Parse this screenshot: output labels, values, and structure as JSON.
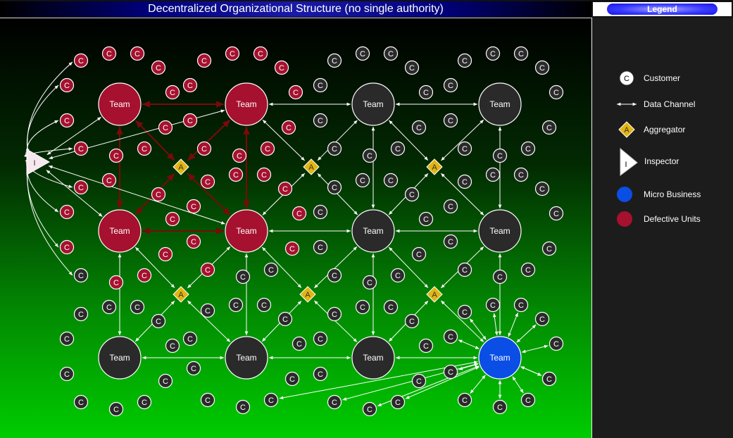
{
  "title": "Decentralized Organizational Structure (no single authority)",
  "legend": {
    "heading": "Legend",
    "items": [
      {
        "key": "customer",
        "label": "Customer",
        "glyph": "C"
      },
      {
        "key": "channel",
        "label": "Data Channel"
      },
      {
        "key": "aggregator",
        "label": "Aggregator",
        "glyph": "A"
      },
      {
        "key": "inspector",
        "label": "Inspector",
        "glyph": "I"
      },
      {
        "key": "micro",
        "label": "Micro Business"
      },
      {
        "key": "defective",
        "label": "Defective Units"
      }
    ]
  },
  "labels": {
    "team": "Team",
    "customer": "C",
    "aggregator": "A",
    "inspector": "I"
  },
  "colors": {
    "defective": "#a5112e",
    "team": "#2a2a2a",
    "micro": "#0a4ee6",
    "aggregator": "#e3b512",
    "channel_white": "#ffffff",
    "channel_defective": "#7a0a0a",
    "legend_bg": "#1c1c1c",
    "border": "#eeeeee"
  },
  "teams": [
    {
      "id": "t1",
      "status": "defective"
    },
    {
      "id": "t2",
      "status": "defective"
    },
    {
      "id": "t3",
      "status": "normal"
    },
    {
      "id": "t4",
      "status": "normal"
    },
    {
      "id": "t5",
      "status": "defective"
    },
    {
      "id": "t6",
      "status": "defective"
    },
    {
      "id": "t7",
      "status": "normal"
    },
    {
      "id": "t8",
      "status": "normal"
    },
    {
      "id": "t9",
      "status": "normal"
    },
    {
      "id": "t10",
      "status": "normal"
    },
    {
      "id": "t11",
      "status": "normal"
    },
    {
      "id": "t12",
      "status": "micro"
    }
  ],
  "aggregators": [
    "a1",
    "a2",
    "a3",
    "a4",
    "a5",
    "a6"
  ],
  "inspector": {
    "id": "i1"
  },
  "team_links": [
    [
      "t1",
      "t2",
      "defective"
    ],
    [
      "t1",
      "t5",
      "defective"
    ],
    [
      "t2",
      "t6",
      "defective"
    ],
    [
      "t5",
      "t6",
      "defective"
    ],
    [
      "t2",
      "t3",
      "normal"
    ],
    [
      "t3",
      "t4",
      "normal"
    ],
    [
      "t6",
      "t7",
      "normal"
    ],
    [
      "t7",
      "t8",
      "normal"
    ],
    [
      "t9",
      "t10",
      "normal"
    ],
    [
      "t10",
      "t11",
      "normal"
    ],
    [
      "t11",
      "t12",
      "normal"
    ],
    [
      "t3",
      "t7",
      "normal"
    ],
    [
      "t4",
      "t8",
      "normal"
    ],
    [
      "t5",
      "t9",
      "normal"
    ],
    [
      "t6",
      "t10",
      "normal"
    ],
    [
      "t7",
      "t11",
      "normal"
    ],
    [
      "t8",
      "t12",
      "normal"
    ]
  ],
  "aggregator_links": [
    [
      "a1",
      "t1",
      "defective"
    ],
    [
      "a1",
      "t2",
      "defective"
    ],
    [
      "a1",
      "t5",
      "defective"
    ],
    [
      "a1",
      "t6",
      "defective"
    ],
    [
      "a2",
      "t2",
      "normal"
    ],
    [
      "a2",
      "t3",
      "normal"
    ],
    [
      "a2",
      "t6",
      "normal"
    ],
    [
      "a2",
      "t7",
      "normal"
    ],
    [
      "a3",
      "t3",
      "normal"
    ],
    [
      "a3",
      "t4",
      "normal"
    ],
    [
      "a3",
      "t7",
      "normal"
    ],
    [
      "a3",
      "t8",
      "normal"
    ],
    [
      "a4",
      "t5",
      "normal"
    ],
    [
      "a4",
      "t6",
      "normal"
    ],
    [
      "a4",
      "t9",
      "normal"
    ],
    [
      "a4",
      "t10",
      "normal"
    ],
    [
      "a5",
      "t6",
      "normal"
    ],
    [
      "a5",
      "t7",
      "normal"
    ],
    [
      "a5",
      "t10",
      "normal"
    ],
    [
      "a5",
      "t11",
      "normal"
    ],
    [
      "a6",
      "t7",
      "normal"
    ],
    [
      "a6",
      "t8",
      "normal"
    ],
    [
      "a6",
      "t11",
      "normal"
    ],
    [
      "a6",
      "t12",
      "normal"
    ]
  ],
  "inspector_links": [
    "t1",
    "t2",
    "t5",
    "t6"
  ],
  "inspector_customer_links": 8,
  "customers": [
    {
      "s": "d"
    },
    {
      "s": "d"
    },
    {
      "s": "d"
    },
    {
      "s": "d"
    },
    {
      "s": "d"
    },
    {
      "s": "d"
    },
    {
      "s": "d"
    },
    {
      "s": "d"
    },
    {
      "s": "d"
    },
    {
      "s": "d"
    },
    {
      "s": "d"
    },
    {
      "s": "d"
    },
    {
      "s": "d"
    },
    {
      "s": "d"
    },
    {
      "s": "d"
    },
    {
      "s": "d"
    },
    {
      "s": "d"
    },
    {
      "s": "d"
    },
    {
      "s": "d"
    },
    {
      "s": "d"
    },
    {
      "s": "d"
    },
    {
      "s": "d"
    },
    {
      "s": "d"
    },
    {
      "s": "d"
    },
    {
      "s": "d"
    },
    {
      "s": "d"
    },
    {
      "s": "d"
    },
    {
      "s": "d"
    },
    {
      "s": "d"
    },
    {
      "s": "d"
    },
    {
      "s": "d"
    },
    {
      "s": "d"
    },
    {
      "s": "d"
    },
    {
      "s": "d"
    },
    {
      "s": "d"
    },
    {
      "s": "d"
    },
    {
      "s": "d"
    },
    {
      "s": "d"
    },
    {
      "s": "d"
    },
    {
      "s": "d"
    },
    {
      "s": "n"
    },
    {
      "s": "n"
    },
    {
      "s": "n"
    },
    {
      "s": "n"
    },
    {
      "s": "n"
    },
    {
      "s": "n"
    },
    {
      "s": "n"
    },
    {
      "s": "n"
    },
    {
      "s": "n"
    },
    {
      "s": "n"
    },
    {
      "s": "n"
    },
    {
      "s": "n"
    },
    {
      "s": "n"
    },
    {
      "s": "n"
    },
    {
      "s": "n"
    },
    {
      "s": "n"
    },
    {
      "s": "n"
    },
    {
      "s": "n"
    },
    {
      "s": "n"
    },
    {
      "s": "n"
    },
    {
      "s": "n"
    },
    {
      "s": "n"
    },
    {
      "s": "n"
    },
    {
      "s": "n"
    },
    {
      "s": "n"
    },
    {
      "s": "n"
    },
    {
      "s": "n"
    },
    {
      "s": "n"
    },
    {
      "s": "n"
    },
    {
      "s": "n"
    },
    {
      "s": "n"
    },
    {
      "s": "n"
    },
    {
      "s": "n"
    },
    {
      "s": "n"
    },
    {
      "s": "n"
    },
    {
      "s": "n"
    },
    {
      "s": "n"
    },
    {
      "s": "n"
    },
    {
      "s": "n"
    },
    {
      "s": "n"
    },
    {
      "s": "n"
    },
    {
      "s": "n"
    },
    {
      "s": "n"
    },
    {
      "s": "n"
    },
    {
      "s": "n"
    },
    {
      "s": "n"
    },
    {
      "s": "n"
    },
    {
      "s": "n"
    },
    {
      "s": "n"
    },
    {
      "s": "n"
    },
    {
      "s": "n"
    },
    {
      "s": "n"
    },
    {
      "s": "n"
    },
    {
      "s": "n"
    },
    {
      "s": "n"
    },
    {
      "s": "n"
    },
    {
      "s": "n"
    },
    {
      "s": "n"
    },
    {
      "s": "n"
    },
    {
      "s": "n"
    },
    {
      "s": "n"
    },
    {
      "s": "n"
    },
    {
      "s": "n"
    },
    {
      "s": "n"
    },
    {
      "s": "n"
    },
    {
      "s": "n"
    },
    {
      "s": "n"
    },
    {
      "s": "n"
    },
    {
      "s": "n"
    },
    {
      "s": "n"
    },
    {
      "s": "n"
    },
    {
      "s": "n"
    },
    {
      "s": "n"
    },
    {
      "s": "n"
    },
    {
      "s": "n"
    },
    {
      "s": "n"
    },
    {
      "s": "n"
    },
    {
      "s": "n"
    },
    {
      "s": "n"
    },
    {
      "s": "n"
    },
    {
      "s": "n"
    },
    {
      "s": "n"
    },
    {
      "s": "n"
    },
    {
      "s": "n"
    },
    {
      "s": "n"
    },
    {
      "s": "n"
    },
    {
      "s": "n"
    },
    {
      "s": "n"
    },
    {
      "s": "n"
    },
    {
      "s": "n"
    },
    {
      "s": "n"
    },
    {
      "s": "n"
    },
    {
      "s": "n"
    },
    {
      "s": "n"
    },
    {
      "s": "n"
    },
    {
      "s": "n"
    },
    {
      "s": "n"
    },
    {
      "s": "n"
    },
    {
      "s": "n"
    },
    {
      "s": "n"
    },
    {
      "s": "n"
    },
    {
      "s": "n"
    },
    {
      "s": "n"
    },
    {
      "s": "n"
    },
    {
      "s": "n"
    },
    {
      "s": "n"
    },
    {
      "s": "n"
    },
    {
      "s": "n"
    },
    {
      "s": "n"
    },
    {
      "s": "n"
    },
    {
      "s": "n"
    },
    {
      "s": "n"
    },
    {
      "s": "n"
    },
    {
      "s": "n"
    },
    {
      "s": "n"
    },
    {
      "s": "n"
    },
    {
      "s": "n"
    },
    {
      "s": "m"
    },
    {
      "s": "m"
    },
    {
      "s": "m"
    },
    {
      "s": "m"
    },
    {
      "s": "m"
    },
    {
      "s": "m"
    },
    {
      "s": "m"
    },
    {
      "s": "m"
    },
    {
      "s": "m"
    },
    {
      "s": "m"
    },
    {
      "s": "m"
    },
    {
      "s": "m"
    },
    {
      "s": "m"
    },
    {
      "s": "m"
    },
    {
      "s": "m"
    },
    {
      "s": "m"
    }
  ]
}
